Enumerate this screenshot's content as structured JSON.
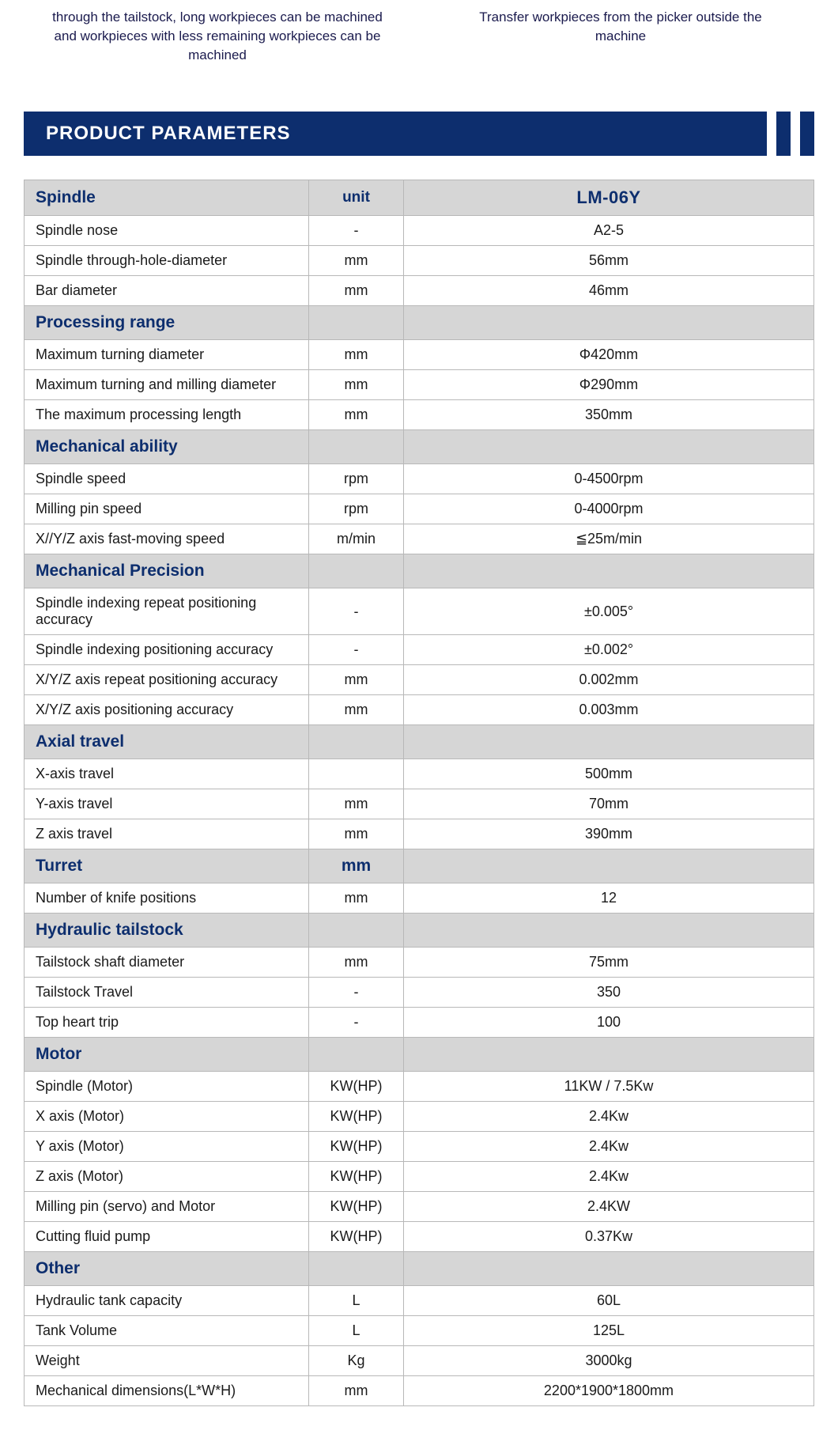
{
  "top_descriptions": {
    "left": "through the tailstock, long workpieces can be machined and workpieces with less remaining workpieces can be machined",
    "right": "Transfer workpieces from the picker outside the machine"
  },
  "section_title": "PRODUCT PARAMETERS",
  "colors": {
    "header_bg": "#0d2e6e",
    "header_text": "#ffffff",
    "section_bg": "#d6d6d6",
    "section_text": "#0d2e6e",
    "border": "#b8b8b8",
    "body_text": "#1a1a1a",
    "top_desc_text": "#1a1a4d"
  },
  "table": {
    "header": {
      "label": "Spindle",
      "unit": "unit",
      "value": "LM-06Y"
    },
    "sections": [
      {
        "title": null,
        "rows": [
          {
            "label": "Spindle  nose",
            "unit": "-",
            "value": "A2-5"
          },
          {
            "label": "Spindle  through-hole-diameter",
            "unit": "mm",
            "value": "56mm"
          },
          {
            "label": "Bar diameter",
            "unit": "mm",
            "value": "46mm"
          }
        ]
      },
      {
        "title": "Processing range",
        "rows": [
          {
            "label": "Maximum turning diameter",
            "unit": "mm",
            "value": "Φ420mm"
          },
          {
            "label": "Maximum turning and milling diameter",
            "unit": "mm",
            "value": "Φ290mm"
          },
          {
            "label": "The maximum processing length",
            "unit": "mm",
            "value": "350mm"
          }
        ]
      },
      {
        "title": "Mechanical ability",
        "rows": [
          {
            "label": "Spindle speed",
            "unit": "rpm",
            "value": "0-4500rpm"
          },
          {
            "label": "Milling pin speed",
            "unit": "rpm",
            "value": "0-4000rpm"
          },
          {
            "label": "X//Y/Z axis fast-moving speed",
            "unit": "m/min",
            "value": "≦25m/min"
          }
        ]
      },
      {
        "title": "Mechanical Precision",
        "rows": [
          {
            "label": "Spindle indexing repeat positioning accuracy",
            "unit": "-",
            "value": "±0.005°"
          },
          {
            "label": "Spindle indexing positioning accuracy",
            "unit": "-",
            "value": "±0.002°"
          },
          {
            "label": "X/Y/Z axis repeat positioning accuracy",
            "unit": "mm",
            "value": "0.002mm"
          },
          {
            "label": "X/Y/Z axis positioning accuracy",
            "unit": "mm",
            "value": "0.003mm"
          }
        ]
      },
      {
        "title": "Axial travel",
        "rows": [
          {
            "label": "X-axis travel",
            "unit": "",
            "value": "500mm"
          },
          {
            "label": "Y-axis travel",
            "unit": "mm",
            "value": "70mm"
          },
          {
            "label": "Z axis travel",
            "unit": "mm",
            "value": "390mm"
          }
        ]
      },
      {
        "title": "Turret",
        "title_unit": "mm",
        "rows": [
          {
            "label": "Number of knife positions",
            "unit": "mm",
            "value": "12"
          }
        ]
      },
      {
        "title": "Hydraulic tailstock",
        "rows": [
          {
            "label": "Tailstock shaft diameter",
            "unit": "mm",
            "value": "75mm"
          },
          {
            "label": "Tailstock Travel",
            "unit": "-",
            "value": "350"
          },
          {
            "label": "Top heart trip",
            "unit": "-",
            "value": "100"
          }
        ]
      },
      {
        "title": "Motor",
        "rows": [
          {
            "label": "Spindle (Motor)",
            "unit": "KW(HP)",
            "value": "11KW / 7.5Kw"
          },
          {
            "label": "X axis (Motor)",
            "unit": "KW(HP)",
            "value": "2.4Kw"
          },
          {
            "label": "Y axis (Motor)",
            "unit": "KW(HP)",
            "value": "2.4Kw"
          },
          {
            "label": "Z axis (Motor)",
            "unit": "KW(HP)",
            "value": "2.4Kw"
          },
          {
            "label": "Milling pin (servo) and Motor",
            "unit": "KW(HP)",
            "value": "2.4KW"
          },
          {
            "label": "Cutting fluid pump",
            "unit": "KW(HP)",
            "value": "0.37Kw"
          }
        ]
      },
      {
        "title": "Other",
        "rows": [
          {
            "label": "Hydraulic tank capacity",
            "unit": "L",
            "value": "60L"
          },
          {
            "label": "Tank Volume",
            "unit": "L",
            "value": "125L"
          },
          {
            "label": "Weight",
            "unit": "Kg",
            "value": "3000kg"
          },
          {
            "label": "Mechanical dimensions(L*W*H)",
            "unit": "mm",
            "value": "2200*1900*1800mm"
          }
        ]
      }
    ]
  }
}
